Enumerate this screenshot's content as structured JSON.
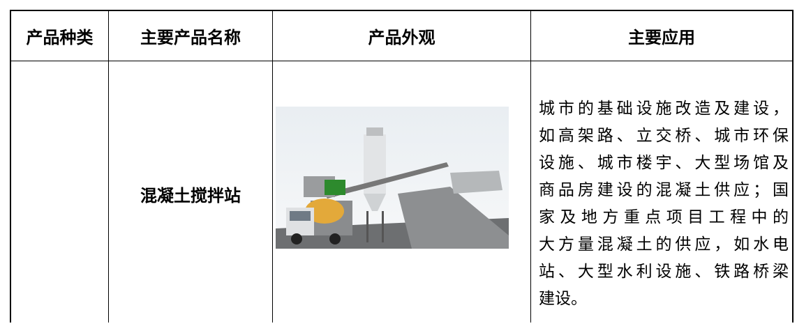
{
  "table": {
    "header": [
      "产品种类",
      "主要产品名称",
      "产品外观",
      "主要应用"
    ],
    "rows": [
      [
        "",
        "混凝土搅拌站",
        "",
        [
          "城市的基础设施改造及建设，",
          "如高架路、立交桥、城市环保",
          "设施、城市楼宇、大型场馆及",
          "商品房建设的混凝土供应；国",
          "家及地方重点项目工程中的",
          "大方量混凝土的供应，如水电",
          "站、大型水利设施、铁路桥梁",
          "建设。"
        ]
      ]
    ]
  }
}
